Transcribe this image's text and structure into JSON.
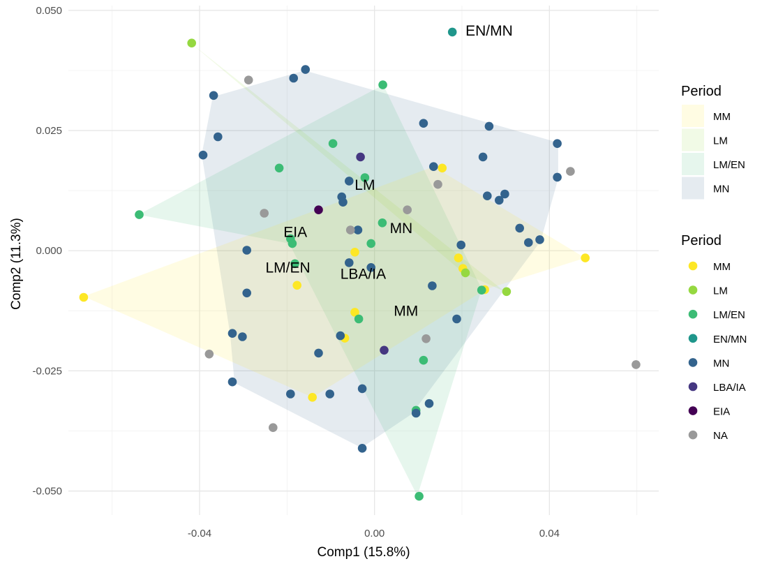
{
  "chart_data": {
    "type": "scatter",
    "xlabel": "Comp1 (15.8%)",
    "ylabel": "Comp2 (11.3%)",
    "xlim": [
      -0.07,
      0.065
    ],
    "ylim": [
      -0.055,
      0.051
    ],
    "x_ticks": [
      -0.04,
      0.0,
      0.04
    ],
    "x_tick_labels": [
      "-0.04",
      "0.00",
      "0.04"
    ],
    "y_ticks": [
      0.05,
      0.025,
      0.0,
      -0.025,
      -0.05
    ],
    "y_tick_labels": [
      "0.050",
      "0.025",
      "0.000",
      "-0.025",
      "-0.050"
    ],
    "grid": true,
    "colors": {
      "MM": "#FDE725",
      "LM": "#95D840",
      "LM/EN": "#3CBC75",
      "EN/MN": "#1F968B",
      "MN": "#33638D",
      "LBA/IA": "#453781",
      "EIA": "#440154",
      "NA": "#999999"
    },
    "hull_legend": {
      "title": "Period",
      "position": "right",
      "entries": [
        "MM",
        "LM",
        "LM/EN",
        "MN"
      ]
    },
    "point_legend": {
      "title": "Period",
      "position": "right",
      "entries": [
        "MM",
        "LM",
        "LM/EN",
        "EN/MN",
        "MN",
        "LBA/IA",
        "EIA",
        "NA"
      ]
    },
    "hulls": [
      {
        "name": "MN",
        "points": [
          [
            -0.037,
            0.032
          ],
          [
            -0.016,
            0.0375
          ],
          [
            0.042,
            0.0225
          ],
          [
            0.042,
            0.015
          ],
          [
            0.038,
            0.002
          ],
          [
            0.0085,
            -0.034
          ],
          [
            -0.003,
            -0.041
          ],
          [
            -0.032,
            -0.0275
          ],
          [
            -0.033,
            -0.0175
          ],
          [
            -0.0395,
            0.02
          ]
        ]
      },
      {
        "name": "LM/EN",
        "points": [
          [
            0.002,
            0.0345
          ],
          [
            0.0245,
            -0.008
          ],
          [
            0.0098,
            -0.051
          ],
          [
            -0.0195,
            0.0015
          ],
          [
            -0.054,
            0.0075
          ]
        ]
      },
      {
        "name": "LM",
        "points": [
          [
            -0.042,
            0.0432
          ],
          [
            0.0298,
            -0.0085
          ],
          [
            0.0205,
            -0.0047
          ]
        ]
      },
      {
        "name": "MM",
        "points": [
          [
            0.0482,
            -0.0015
          ],
          [
            0.0135,
            0.0175
          ],
          [
            -0.0665,
            -0.0095
          ],
          [
            -0.0142,
            -0.0305
          ],
          [
            0.0255,
            -0.008
          ]
        ]
      }
    ],
    "labels": [
      {
        "text": "EN/MN",
        "x": 0.0262,
        "y": 0.0458
      },
      {
        "text": "LM",
        "x": -0.0022,
        "y": 0.0137
      },
      {
        "text": "MN",
        "x": 0.0061,
        "y": 0.0047
      },
      {
        "text": "EIA",
        "x": -0.0181,
        "y": 0.0039
      },
      {
        "text": "LM/EN",
        "x": -0.0198,
        "y": -0.0035
      },
      {
        "text": "LBA/IA",
        "x": -0.0026,
        "y": -0.0048
      },
      {
        "text": "MM",
        "x": 0.0072,
        "y": -0.0125
      }
    ],
    "series": [
      {
        "name": "MM",
        "points": [
          [
            -0.0665,
            -0.0097
          ],
          [
            -0.0177,
            -0.0072
          ],
          [
            -0.0142,
            -0.0305
          ],
          [
            -0.0068,
            -0.0182
          ],
          [
            -0.0045,
            -0.0003
          ],
          [
            -0.0045,
            -0.0128
          ],
          [
            0.0192,
            -0.0015
          ],
          [
            0.0202,
            -0.0037
          ],
          [
            0.0252,
            -0.0081
          ],
          [
            0.0155,
            0.0172
          ],
          [
            0.0482,
            -0.0015
          ]
        ]
      },
      {
        "name": "LM",
        "points": [
          [
            -0.0418,
            0.0432
          ],
          [
            0.0208,
            -0.0046
          ],
          [
            0.0302,
            -0.0085
          ]
        ]
      },
      {
        "name": "LM/EN",
        "points": [
          [
            -0.0538,
            0.0075
          ],
          [
            -0.0218,
            0.0172
          ],
          [
            -0.0192,
            0.0025
          ],
          [
            -0.0188,
            0.0015
          ],
          [
            -0.0182,
            -0.0027
          ],
          [
            -0.0095,
            0.0223
          ],
          [
            -0.0022,
            0.0152
          ],
          [
            -0.0008,
            0.0015
          ],
          [
            0.0018,
            0.0058
          ],
          [
            0.0019,
            0.0345
          ],
          [
            -0.0036,
            -0.0142
          ],
          [
            0.0112,
            -0.0228
          ],
          [
            0.0095,
            -0.0332
          ],
          [
            0.0102,
            -0.0511
          ],
          [
            0.0245,
            -0.0082
          ]
        ]
      },
      {
        "name": "EN/MN",
        "points": [
          [
            0.0178,
            0.0455
          ]
        ]
      },
      {
        "name": "MN",
        "points": [
          [
            -0.0368,
            0.0323
          ],
          [
            -0.0358,
            0.0237
          ],
          [
            -0.0392,
            0.0199
          ],
          [
            -0.0185,
            0.0359
          ],
          [
            -0.0158,
            0.0377
          ],
          [
            -0.0292,
            0.0001
          ],
          [
            -0.0292,
            -0.0088
          ],
          [
            -0.0325,
            -0.0172
          ],
          [
            -0.0302,
            -0.0179
          ],
          [
            -0.0325,
            -0.0273
          ],
          [
            -0.0192,
            -0.0298
          ],
          [
            -0.0128,
            -0.0213
          ],
          [
            -0.0078,
            -0.0177
          ],
          [
            -0.0102,
            -0.0298
          ],
          [
            -0.0058,
            0.0145
          ],
          [
            -0.0075,
            0.0112
          ],
          [
            -0.0072,
            0.0101
          ],
          [
            -0.0058,
            -0.0025
          ],
          [
            -0.0038,
            0.0043
          ],
          [
            -0.0028,
            -0.0287
          ],
          [
            -0.0028,
            -0.0411
          ],
          [
            -0.0008,
            -0.0035
          ],
          [
            0.0112,
            0.0265
          ],
          [
            0.0135,
            0.0175
          ],
          [
            0.0198,
            0.0012
          ],
          [
            0.0132,
            -0.0073
          ],
          [
            0.0188,
            -0.0142
          ],
          [
            0.0248,
            0.0195
          ],
          [
            0.0262,
            0.0259
          ],
          [
            0.0258,
            0.0114
          ],
          [
            0.0285,
            0.0105
          ],
          [
            0.0298,
            0.0118
          ],
          [
            0.0332,
            0.0047
          ],
          [
            0.0352,
            0.0017
          ],
          [
            0.0378,
            0.0023
          ],
          [
            0.0418,
            0.0223
          ],
          [
            0.0418,
            0.0153
          ],
          [
            0.0125,
            -0.0318
          ],
          [
            0.0095,
            -0.0338
          ]
        ]
      },
      {
        "name": "LBA/IA",
        "points": [
          [
            -0.0032,
            0.0195
          ],
          [
            0.0022,
            -0.0207
          ]
        ]
      },
      {
        "name": "EIA",
        "points": [
          [
            -0.0128,
            0.0085
          ]
        ]
      },
      {
        "name": "NA",
        "points": [
          [
            -0.0288,
            0.0355
          ],
          [
            -0.0252,
            0.0078
          ],
          [
            -0.0055,
            0.0043
          ],
          [
            0.0075,
            0.0085
          ],
          [
            0.0145,
            0.0138
          ],
          [
            0.0118,
            -0.0183
          ],
          [
            -0.0378,
            -0.0215
          ],
          [
            -0.0232,
            -0.0368
          ],
          [
            0.0448,
            0.0165
          ],
          [
            0.0598,
            -0.0237
          ]
        ]
      }
    ]
  }
}
